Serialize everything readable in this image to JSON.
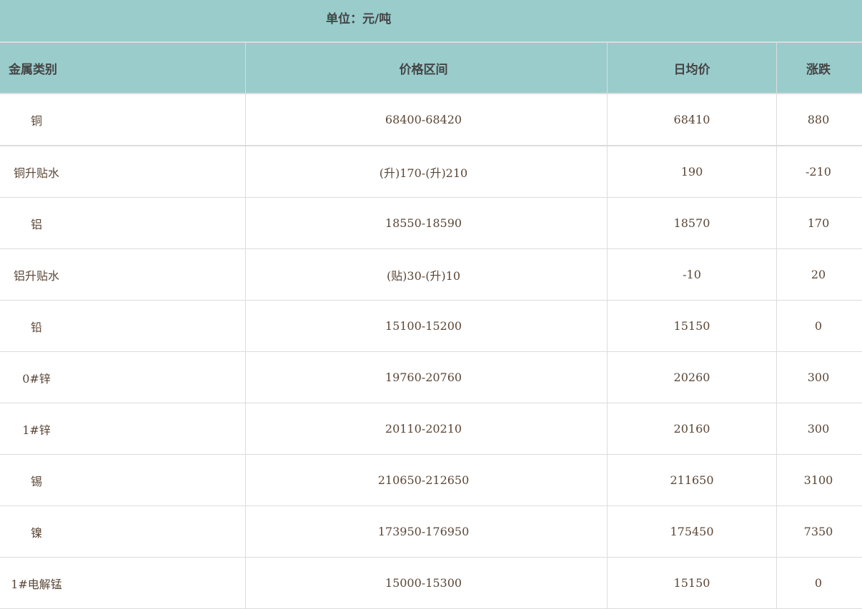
{
  "unit_label": "单位：元/吨",
  "columns": [
    "金属类别",
    "价格区间",
    "日均价",
    "涨跌"
  ],
  "rows": [
    [
      "铜",
      "68400-68420",
      "68410",
      "880"
    ],
    [
      "铜升贴水",
      "(升)170-(升)210",
      "190",
      "-210"
    ],
    [
      "铝",
      "18550-18590",
      "18570",
      "170"
    ],
    [
      "铝升贴水",
      "(贴)30-(升)10",
      "-10",
      "20"
    ],
    [
      "铅",
      "15100-15200",
      "15150",
      "0"
    ],
    [
      "0#锌",
      "19760-20760",
      "20260",
      "300"
    ],
    [
      "1#锌",
      "20110-20210",
      "20160",
      "300"
    ],
    [
      "锡",
      "210650-212650",
      "211650",
      "3100"
    ],
    [
      "镍",
      "173950-176950",
      "175450",
      "7350"
    ],
    [
      "1#电解锰",
      "15000-15300",
      "15150",
      "0"
    ]
  ],
  "colors": {
    "header_bg": "#9acccc",
    "border": "#dcdcdc",
    "text": "#5b4636"
  }
}
